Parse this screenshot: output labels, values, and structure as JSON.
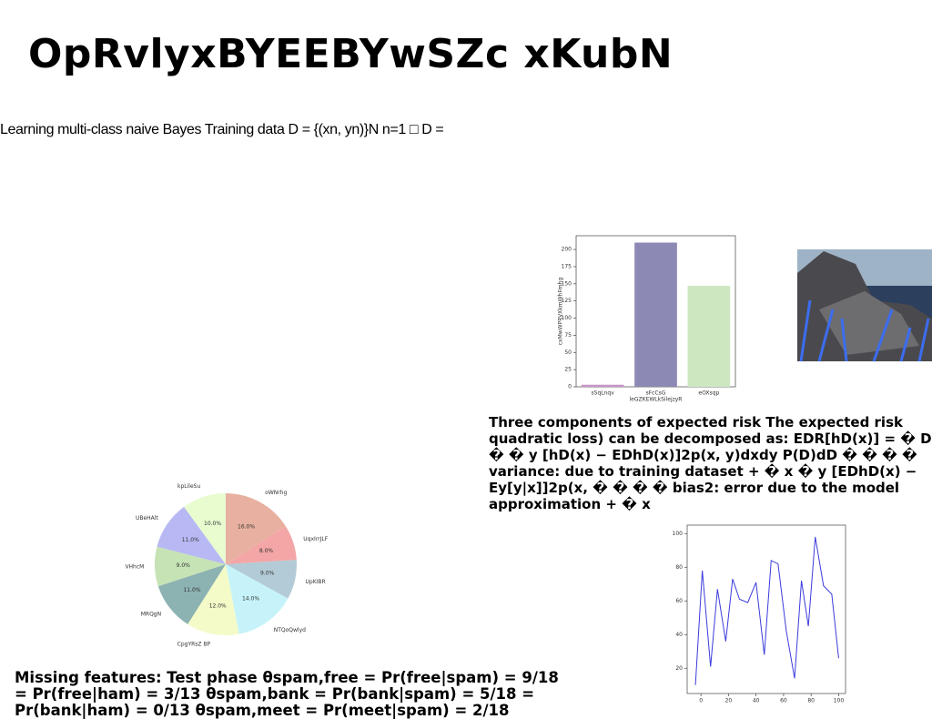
{
  "header": {
    "title": "OpRvlyxBYEEBYwSZc xKubN"
  },
  "intro": "Learning multi-class naive Bayes Training data D = {(xn, yn)}N n=1 □ D =",
  "risk_text": "Three components of expected risk The expected risk quadratic loss) can be decomposed as: EDR[hD(x)] = � D � � y [hD(x) − EDhD(x)]2p(x, y)dxdy P(D)dD � � � � variance: due to training dataset + � x � y [EDhD(x) − Ey[y|x]]2p(x, � � � � bias2: error due to the model approximation + � x",
  "missing_text": "Missing features: Test phase θspam,free = Pr(free|spam) = 9/18 = Pr(free|ham) = 3/13 θspam,bank = Pr(bank|spam) = 5/18 = Pr(bank|ham) = 0/13 θspam,meet = Pr(meet|spam) = 2/18",
  "chart_data": [
    {
      "type": "bar",
      "x_label": "leGZKEWLkSilejzyR",
      "y_label": "cxMwWPRVXkmWhFmhg",
      "categories": [
        "sSqLnqv",
        "sFcCsG",
        "eOXsqp"
      ],
      "values": [
        3,
        210,
        147
      ],
      "colors": [
        "#c994c7",
        "#8c89b4",
        "#cde8c0"
      ],
      "ylim": [
        0,
        220
      ],
      "yticks": [
        0,
        25,
        50,
        75,
        100,
        125,
        150,
        175,
        200
      ]
    },
    {
      "type": "pie",
      "categories": [
        "oWNrhg",
        "UqxIrrJLF",
        "UpKIBR",
        "NTQoQwlyd",
        "CpgYRsZ BP",
        "MRQgN",
        "VHhcM",
        "UBeHAlt",
        "kpLileSu"
      ],
      "values": [
        16,
        8,
        9,
        14,
        12,
        11,
        9,
        11,
        10
      ],
      "value_labels": [
        "16.0%",
        "8.0%",
        "9.0%",
        "14.0%",
        "12.0%",
        "11.0%",
        "9.0%",
        "11.0%",
        "10.0%"
      ],
      "colors": [
        "#e8b0a0",
        "#f4a6a6",
        "#b3cbd6",
        "#c6f3f9",
        "#f4fbc8",
        "#8db2b2",
        "#c5e3b5",
        "#b8b8f4",
        "#e8fcd0"
      ]
    },
    {
      "type": "line",
      "color": "#3b3bdc",
      "x": [
        -4,
        1,
        7,
        12,
        18,
        23,
        28,
        34,
        40,
        46,
        51,
        56,
        62,
        68,
        73,
        78,
        83,
        89,
        95,
        100
      ],
      "values": [
        10,
        78,
        21,
        67,
        36,
        73,
        61,
        59,
        71,
        28,
        84,
        82,
        42,
        14,
        72,
        45,
        98,
        69,
        64,
        26
      ],
      "xlim": [
        -10,
        105
      ],
      "ylim": [
        5,
        105
      ],
      "xticks": [
        0,
        20,
        40,
        60,
        80,
        100
      ],
      "yticks": [
        20,
        40,
        60,
        80,
        100
      ]
    }
  ]
}
